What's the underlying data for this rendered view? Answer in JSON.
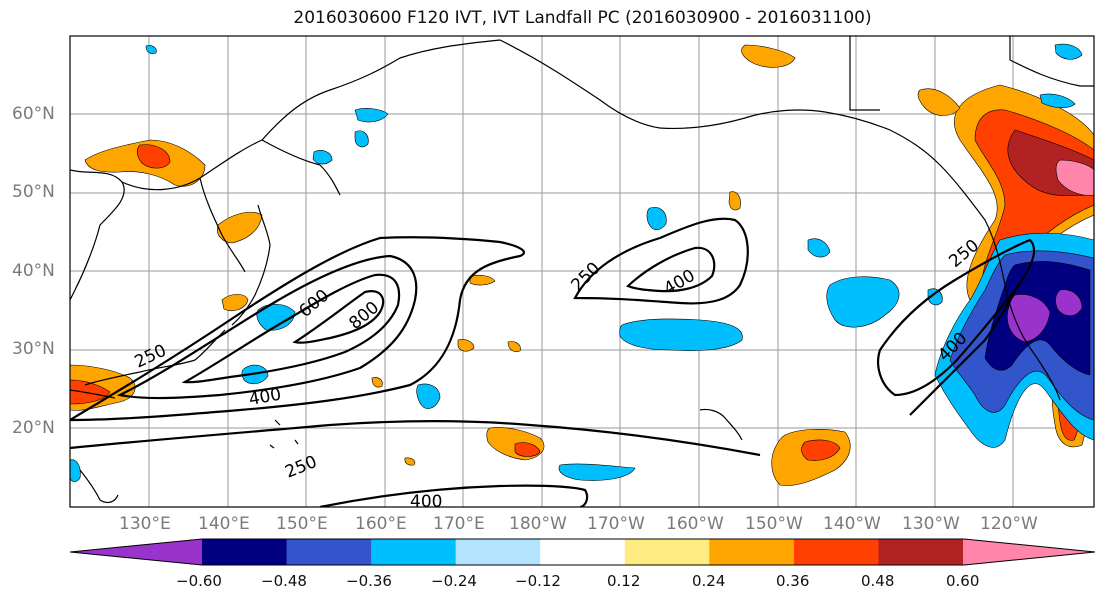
{
  "title": "2016030600 F120 IVT, IVT Landfall PC (2016030900 - 2016031100)",
  "lat_labels": [
    "60°N",
    "50°N",
    "40°N",
    "30°N",
    "20°N"
  ],
  "lon_labels": [
    "130°E",
    "140°E",
    "150°E",
    "160°E",
    "170°E",
    "180°W",
    "170°W",
    "160°W",
    "150°W",
    "140°W",
    "130°W",
    "120°W"
  ],
  "contour_labels": [
    "250",
    "400",
    "600",
    "800",
    "250",
    "400",
    "250",
    "400",
    "250",
    "400",
    "250",
    "400"
  ],
  "colorbar": {
    "colors": [
      "#9933cc",
      "#000080",
      "#3355cc",
      "#00bfff",
      "#b3e5ff",
      "#ffffff",
      "#ffec80",
      "#ffa500",
      "#ff4000",
      "#b22222",
      "#ff85aa"
    ],
    "ticks": [
      "−0.60",
      "−0.48",
      "−0.36",
      "−0.24",
      "−0.12",
      "0.12",
      "0.24",
      "0.36",
      "0.48",
      "0.60"
    ]
  }
}
